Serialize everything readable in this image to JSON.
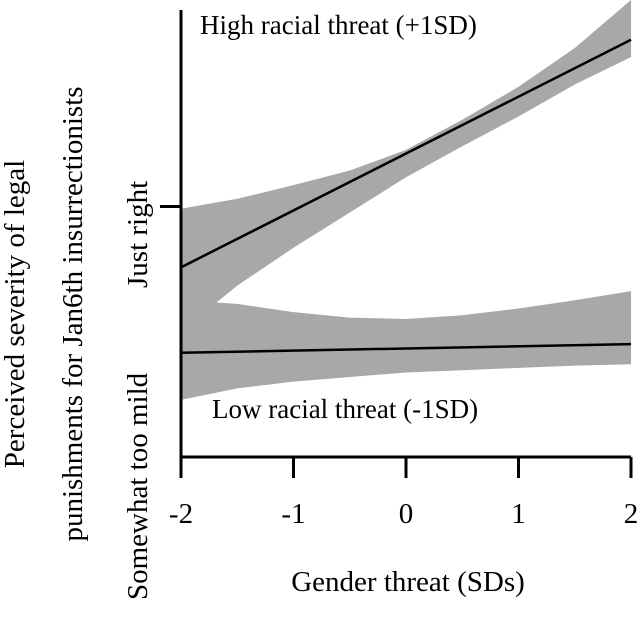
{
  "chart_data": {
    "type": "line",
    "title": "",
    "xlabel": "Gender threat (SDs)",
    "ylabel_lines": [
      "Perceived severity of legal",
      "punishments for Jan6th insurrectionists"
    ],
    "xlim": [
      -2,
      2
    ],
    "ylim": [
      0,
      1
    ],
    "xticks": [
      {
        "value": -2,
        "label": "-2"
      },
      {
        "value": -1,
        "label": "-1"
      },
      {
        "value": 0,
        "label": "0"
      },
      {
        "value": 1,
        "label": "1"
      },
      {
        "value": 2,
        "label": "2"
      }
    ],
    "yticks": [
      {
        "value": 0.5,
        "label": "Just right"
      }
    ],
    "ylabel_extra": "Somewhat too mild",
    "grid": false,
    "series": [
      {
        "name": "High racial threat (+1SD)",
        "x": [
          -2,
          2
        ],
        "y": [
          0.415,
          0.913
        ],
        "band_x": [
          -2,
          -1.8,
          -1.5,
          -1,
          -0.5,
          0,
          0.5,
          1,
          1.5,
          2
        ],
        "band_lower": [
          0.29,
          0.315,
          0.375,
          0.458,
          0.535,
          0.612,
          0.68,
          0.745,
          0.815,
          0.875
        ],
        "band_upper": [
          0.543,
          0.552,
          0.565,
          0.595,
          0.627,
          0.672,
          0.738,
          0.81,
          0.895,
          1.0
        ]
      },
      {
        "name": "Low racial threat (-1SD)",
        "x": [
          -2,
          2
        ],
        "y": [
          0.228,
          0.247
        ],
        "band_x": [
          -2,
          -1.5,
          -1,
          -0.5,
          0,
          0.5,
          1,
          1.5,
          2
        ],
        "band_lower": [
          0.125,
          0.15,
          0.165,
          0.175,
          0.185,
          0.19,
          0.195,
          0.2,
          0.203
        ],
        "band_upper": [
          0.343,
          0.335,
          0.317,
          0.305,
          0.302,
          0.31,
          0.325,
          0.343,
          0.363
        ]
      }
    ],
    "band_color": "#a8a8a8",
    "line_color": "#000000"
  }
}
